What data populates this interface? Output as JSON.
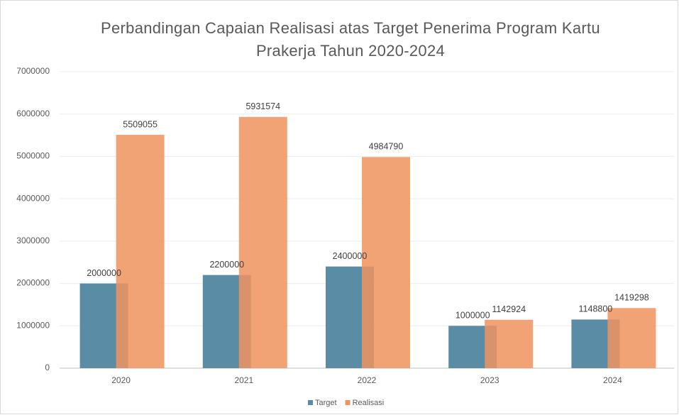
{
  "chart_data": {
    "type": "bar",
    "title": "Perbandingan Capaian Realisasi atas Target Penerima Program Kartu Prakerja Tahun 2020-2024",
    "categories": [
      "2020",
      "2021",
      "2022",
      "2023",
      "2024"
    ],
    "series": [
      {
        "name": "Target",
        "color": "#5a8ca5",
        "values": [
          2000000,
          2200000,
          2400000,
          1000000,
          1148800
        ]
      },
      {
        "name": "Realisasi",
        "color": "#f0935e",
        "values": [
          5509055,
          5931574,
          4984790,
          1142924,
          1419298
        ]
      }
    ],
    "ylim": [
      0,
      7000000
    ],
    "yticks": [
      0,
      1000000,
      2000000,
      3000000,
      4000000,
      5000000,
      6000000,
      7000000
    ],
    "grid": true,
    "legend": "bottom"
  }
}
